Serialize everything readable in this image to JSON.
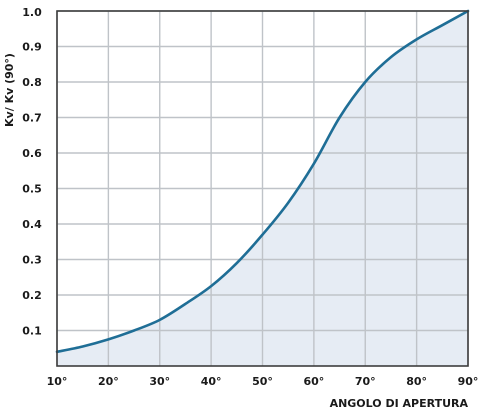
{
  "chart_data": {
    "type": "area",
    "xlabel": "ANGOLO DI APERTURA",
    "ylabel": "Kv/ Kv (90°)",
    "xlim": [
      10,
      90
    ],
    "ylim": [
      0,
      1.0
    ],
    "x_ticks": [
      10,
      20,
      30,
      40,
      50,
      60,
      70,
      80,
      90
    ],
    "x_tick_labels": [
      "10°",
      "20°",
      "30°",
      "40°",
      "50°",
      "60°",
      "70°",
      "80°",
      "90°"
    ],
    "y_ticks": [
      0.1,
      0.2,
      0.3,
      0.4,
      0.5,
      0.6,
      0.7,
      0.8,
      0.9,
      1.0
    ],
    "y_tick_labels": [
      "0.1",
      "0.2",
      "0.3",
      "0.4",
      "0.5",
      "0.6",
      "0.7",
      "0.8",
      "0.9",
      "1.0"
    ],
    "grid": true,
    "series": [
      {
        "x": [
          10,
          15,
          20,
          25,
          30,
          35,
          40,
          45,
          50,
          55,
          60,
          65,
          70,
          75,
          80,
          85,
          90
        ],
        "values": [
          0.04,
          0.055,
          0.075,
          0.1,
          0.13,
          0.175,
          0.225,
          0.29,
          0.37,
          0.46,
          0.57,
          0.7,
          0.8,
          0.87,
          0.92,
          0.96,
          1.0
        ],
        "color": "#1f6e96",
        "fill": "#e6ecf4"
      }
    ],
    "frame_color": "#3d3d3d",
    "grid_color": "#bfc3c8"
  }
}
